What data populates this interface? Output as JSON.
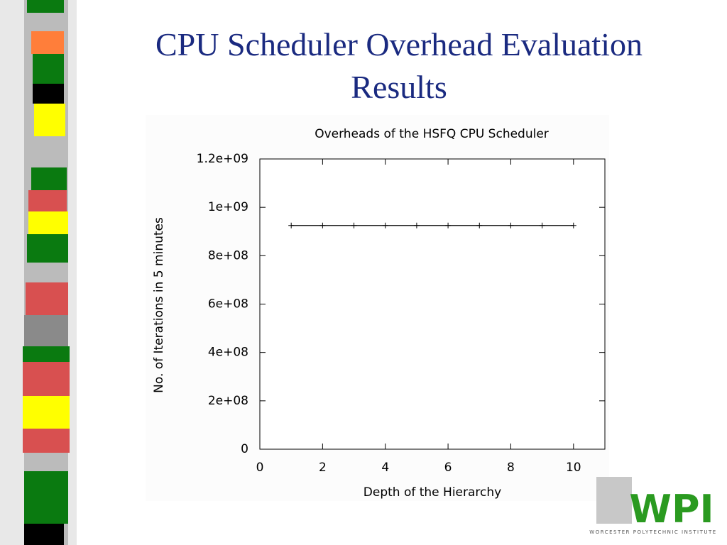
{
  "slide_title": "CPU Scheduler Overhead Evaluation Results",
  "logo": {
    "text": "WPI",
    "subtitle": "WORCESTER POLYTECHNIC INSTITUTE"
  },
  "chart_data": {
    "type": "line",
    "title": "Overheads of the HSFQ CPU Scheduler",
    "x_label": "Depth of the Hierarchy",
    "y_label": "No. of Iterations in 5 minutes",
    "x": [
      1,
      2,
      3,
      4,
      5,
      6,
      7,
      8,
      9,
      10
    ],
    "series": [
      {
        "color": "#000000",
        "values": [
          925000000,
          925000000,
          925000000,
          925000000,
          925000000,
          925000000,
          925000000,
          925000000,
          925000000,
          925000000
        ]
      }
    ],
    "xlim": [
      0,
      11
    ],
    "xticks": [
      0,
      2,
      4,
      6,
      8,
      10
    ],
    "ylim": [
      0,
      1200000000
    ],
    "yticks": [
      0,
      {
        "value": 200000000,
        "label": "2e+08"
      },
      {
        "value": 400000000,
        "label": "4e+08"
      },
      {
        "value": 600000000,
        "label": "6e+08"
      },
      {
        "value": 800000000,
        "label": "8e+08"
      },
      {
        "value": 1000000000,
        "label": "1e+09"
      },
      {
        "value": 1200000000,
        "label": "1.2e+09"
      }
    ],
    "grid": false
  }
}
